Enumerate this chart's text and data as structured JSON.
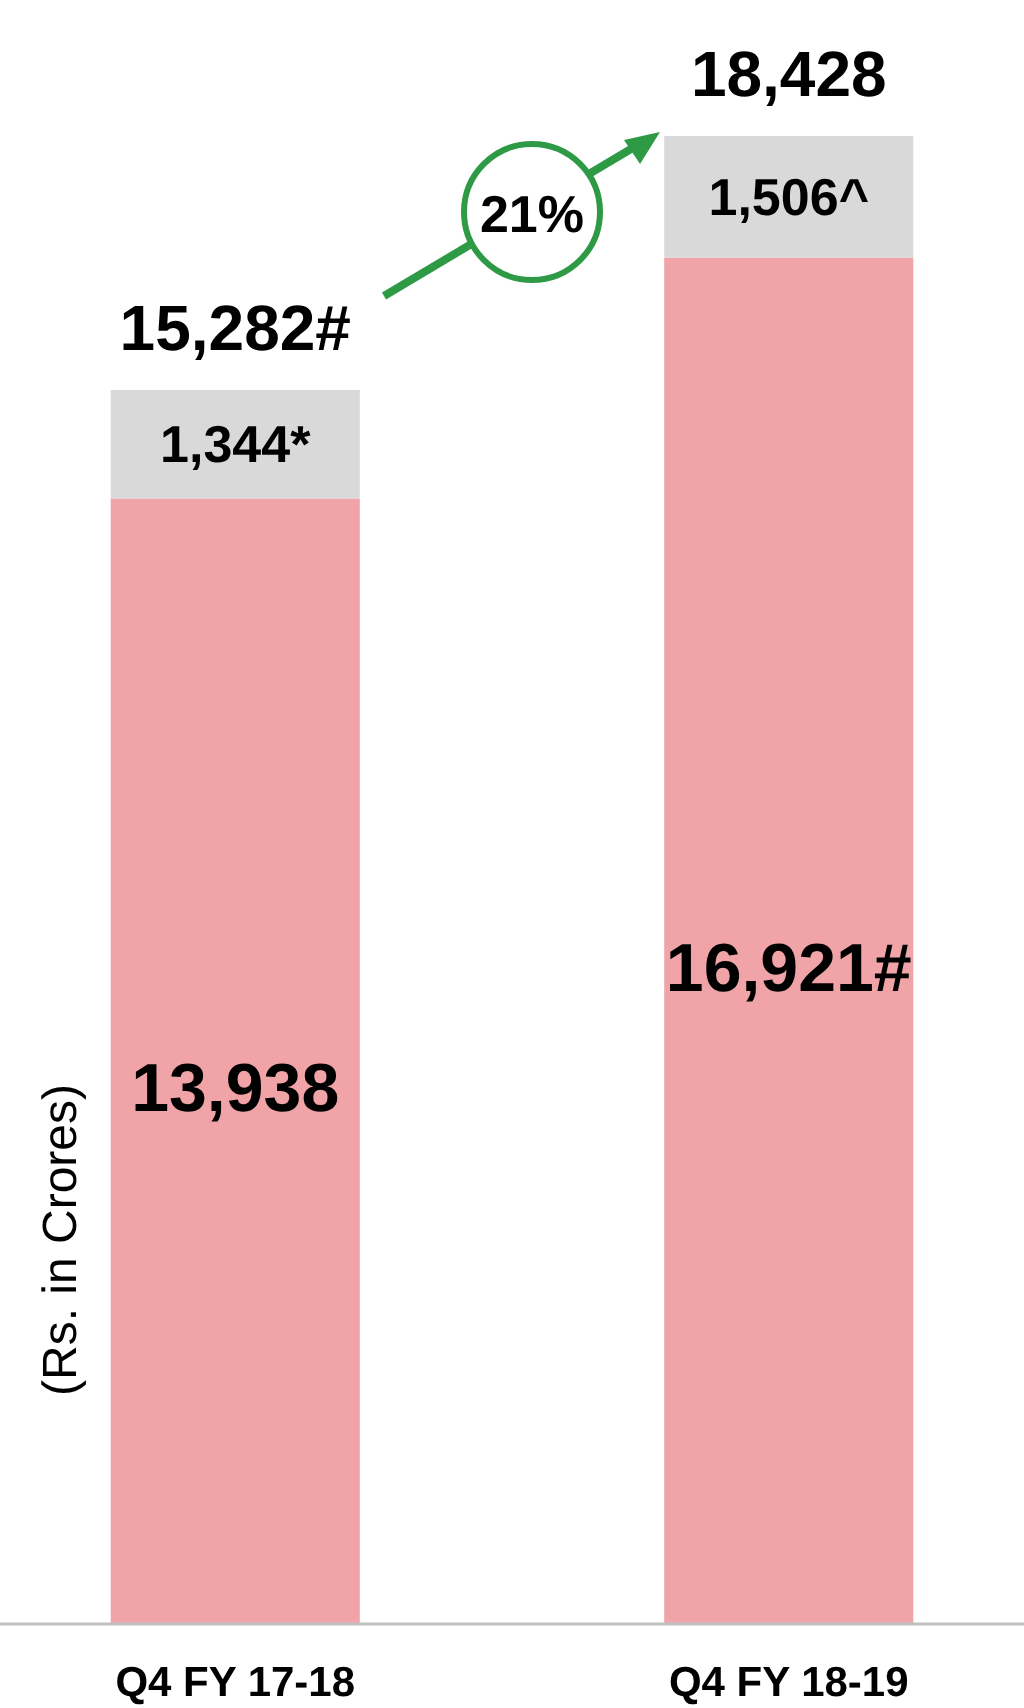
{
  "chart_data": {
    "type": "bar",
    "stacked": true,
    "ylabel": "(Rs. in Crores)",
    "categories": [
      "Q4 FY 17-18",
      "Q4 FY 18-19"
    ],
    "series": [
      {
        "color": "#f0a4a8",
        "values": [
          13938,
          16921
        ],
        "value_labels": [
          "13,938",
          "16,921#"
        ]
      },
      {
        "color": "#d9d9d9",
        "values": [
          1344,
          1506
        ],
        "value_labels": [
          "1,344*",
          "1,506^"
        ]
      }
    ],
    "totals": [
      "15,282#",
      "18,428"
    ],
    "annotations": [
      "21%"
    ]
  }
}
